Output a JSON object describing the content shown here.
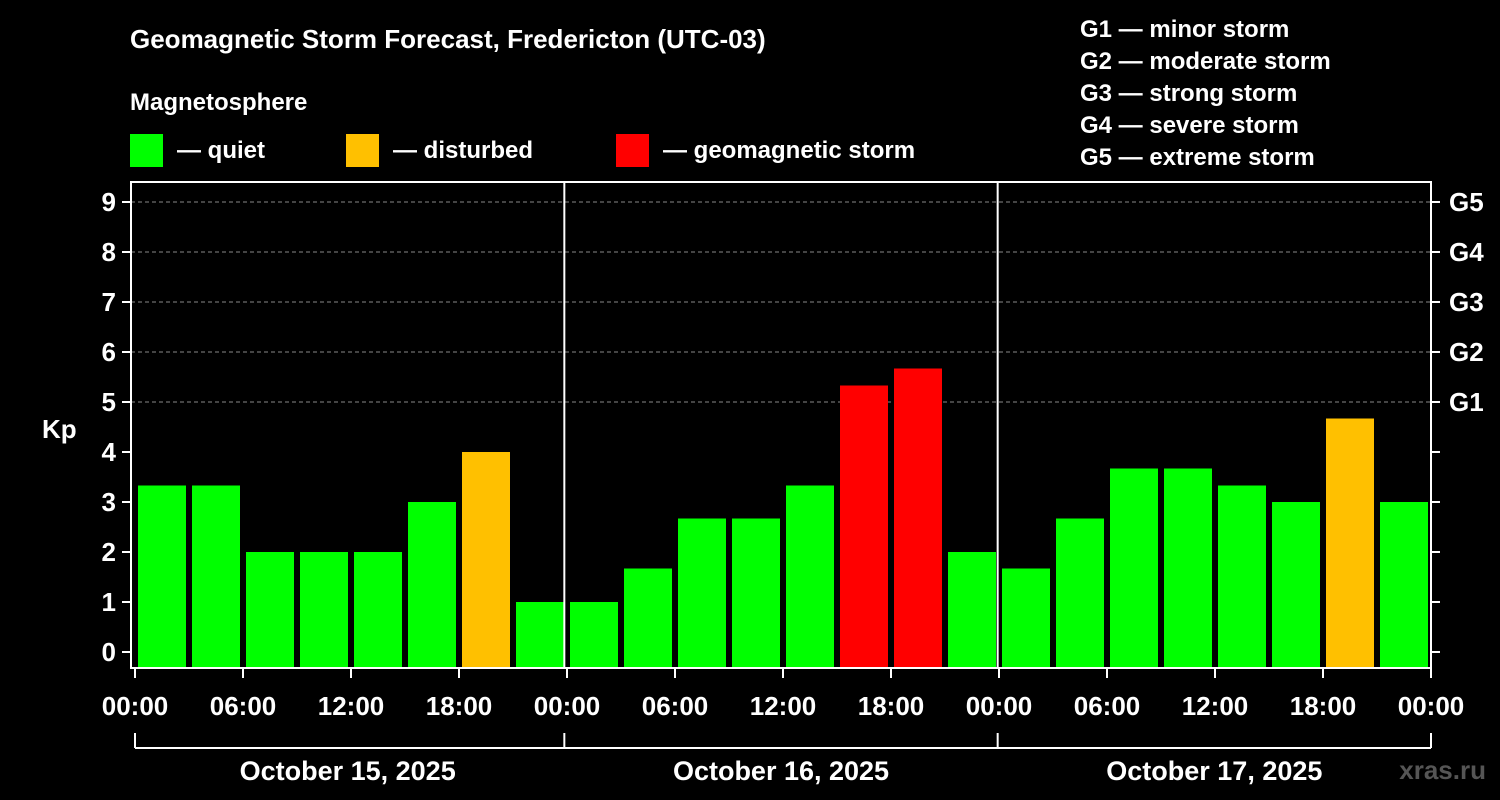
{
  "chart_data": {
    "type": "bar",
    "title": "Geomagnetic Storm Forecast, Fredericton (UTC-03)",
    "legend_title": "Magnetosphere",
    "legend": [
      {
        "label": "— quiet",
        "color": "#00ff00"
      },
      {
        "label": "— disturbed",
        "color": "#ffc000"
      },
      {
        "label": "— geomagnetic storm",
        "color": "#ff0000"
      }
    ],
    "storm_scale": [
      "G1 — minor storm",
      "G2 — moderate storm",
      "G3 — strong storm",
      "G4 — severe storm",
      "G5 — extreme storm"
    ],
    "ylabel": "Kp",
    "ylim": [
      0,
      9
    ],
    "y_ticks": [
      "0",
      "1",
      "2",
      "3",
      "4",
      "5",
      "6",
      "7",
      "8",
      "9"
    ],
    "right_ticks": [
      {
        "kp": 5,
        "label": "G1"
      },
      {
        "kp": 6,
        "label": "G2"
      },
      {
        "kp": 7,
        "label": "G3"
      },
      {
        "kp": 8,
        "label": "G4"
      },
      {
        "kp": 9,
        "label": "G5"
      }
    ],
    "grid": "dashed horizontal lines at Kp 5 to 9",
    "x_tick_labels": [
      "00:00",
      "06:00",
      "12:00",
      "18:00",
      "00:00",
      "06:00",
      "12:00",
      "18:00",
      "00:00",
      "06:00",
      "12:00",
      "18:00",
      "00:00"
    ],
    "days": [
      "October 15, 2025",
      "October 16, 2025",
      "October 17, 2025"
    ],
    "series": [
      {
        "values": [
          3.33,
          3.33,
          2.0,
          2.0,
          2.0,
          3.0,
          4.0,
          1.0,
          1.0,
          1.67,
          2.67,
          2.67,
          3.33,
          5.33,
          5.67,
          2.0,
          1.67,
          2.67,
          3.67,
          3.67,
          3.33,
          3.0,
          4.67,
          3.0
        ],
        "status": [
          "quiet",
          "quiet",
          "quiet",
          "quiet",
          "quiet",
          "quiet",
          "disturbed",
          "quiet",
          "quiet",
          "quiet",
          "quiet",
          "quiet",
          "quiet",
          "storm",
          "storm",
          "quiet",
          "quiet",
          "quiet",
          "quiet",
          "quiet",
          "quiet",
          "quiet",
          "disturbed",
          "quiet"
        ]
      }
    ],
    "colors": {
      "quiet": "#00ff00",
      "disturbed": "#ffc000",
      "storm": "#ff0000",
      "background": "#000000",
      "axis": "#ffffff",
      "grid": "#888888"
    },
    "watermark": "xras.ru"
  }
}
